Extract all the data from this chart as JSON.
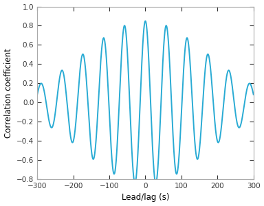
{
  "title": "",
  "xlabel": "Lead/lag (s)",
  "ylabel": "Correlation coefficient",
  "xlim": [
    -300,
    300
  ],
  "ylim": [
    -0.8,
    1.0
  ],
  "xticks": [
    -300,
    -200,
    -100,
    0,
    100,
    200,
    300
  ],
  "yticks": [
    -0.8,
    -0.6,
    -0.4,
    -0.2,
    0,
    0.2,
    0.4,
    0.6,
    0.8,
    1.0
  ],
  "line_color": "#29ABD4",
  "line_width": 1.4,
  "bg_color": "#ffffff",
  "amplitude": 0.85,
  "gauss_sigma": 170.0,
  "carrier_period": 58.0,
  "num_points": 2000,
  "tick_fontsize": 7.5,
  "label_fontsize": 8.5
}
